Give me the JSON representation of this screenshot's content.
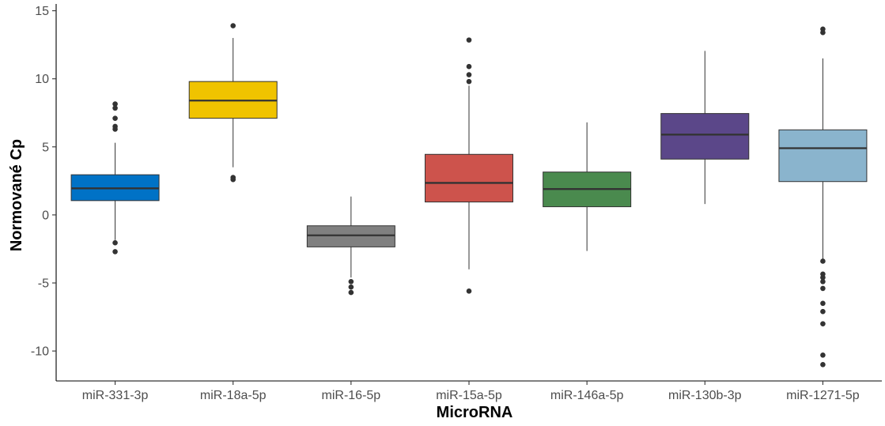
{
  "chart_data": {
    "type": "boxplot",
    "title": "",
    "xlabel": "MicroRNA",
    "ylabel": "Normované Cp",
    "ylim": [
      -12.2,
      15.5
    ],
    "yticks": [
      15,
      10,
      5,
      0,
      -5,
      -10
    ],
    "ytick_labels": [
      "15",
      "10",
      "5",
      "0",
      "-5",
      "-10"
    ],
    "grid": false,
    "legend": "none",
    "categories": [
      "miR-331-3p",
      "miR-18a-5p",
      "miR-16-5p",
      "miR-15a-5p",
      "miR-146a-5p",
      "miR-130b-3p",
      "miR-1271-5p"
    ],
    "boxes": [
      {
        "category": "miR-331-3p",
        "color": "#0072c6",
        "q1": 1.05,
        "median": 1.95,
        "q3": 2.95,
        "whisker_low": -1.85,
        "whisker_high": 5.3,
        "outliers": [
          8.15,
          7.85,
          7.1,
          6.5,
          6.3,
          -2.05,
          -2.7
        ]
      },
      {
        "category": "miR-18a-5p",
        "color": "#f0c300",
        "q1": 7.1,
        "median": 8.4,
        "q3": 9.8,
        "whisker_low": 3.5,
        "whisker_high": 13.0,
        "outliers": [
          13.9,
          2.75,
          2.6
        ]
      },
      {
        "category": "miR-16-5p",
        "color": "#808080",
        "q1": -2.35,
        "median": -1.5,
        "q3": -0.8,
        "whisker_low": -4.6,
        "whisker_high": 1.35,
        "outliers": [
          -4.9,
          -5.3,
          -5.7
        ]
      },
      {
        "category": "miR-15a-5p",
        "color": "#cd534c",
        "q1": 0.95,
        "median": 2.35,
        "q3": 4.45,
        "whisker_low": -4.0,
        "whisker_high": 9.5,
        "outliers": [
          12.85,
          10.9,
          10.3,
          9.8,
          -5.6
        ]
      },
      {
        "category": "miR-146a-5p",
        "color": "#4a8a4e",
        "q1": 0.6,
        "median": 1.9,
        "q3": 3.15,
        "whisker_low": -2.65,
        "whisker_high": 6.8,
        "outliers": []
      },
      {
        "category": "miR-130b-3p",
        "color": "#5b4789",
        "q1": 4.1,
        "median": 5.9,
        "q3": 7.45,
        "whisker_low": 0.8,
        "whisker_high": 12.05,
        "outliers": []
      },
      {
        "category": "miR-1271-5p",
        "color": "#8ab4cd",
        "q1": 2.45,
        "median": 4.9,
        "q3": 6.25,
        "whisker_low": -3.3,
        "whisker_high": 11.5,
        "outliers": [
          13.65,
          13.4,
          -3.4,
          -4.35,
          -4.6,
          -4.9,
          -5.4,
          -6.5,
          -7.1,
          -8.0,
          -10.3,
          -11.0
        ]
      }
    ]
  }
}
